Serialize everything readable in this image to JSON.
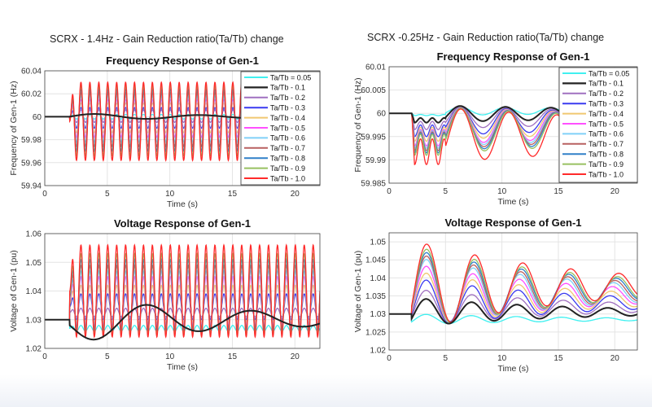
{
  "figures": [
    {
      "title": "SCRX - 1.4Hz - Gain Reduction ratio(Ta/Tb) change",
      "oscillation_hz": 1.4
    },
    {
      "title": "SCRX -0.25Hz - Gain Reduction ratio(Ta/Tb) change",
      "oscillation_hz": 0.25
    }
  ],
  "legend": [
    "Ta/Tb = 0.05",
    "Ta/Tb - 0.1",
    "Ta/Tb - 0.2",
    "Ta/Tb - 0.3",
    "Ta/Tb - 0.4",
    "Ta/Tb - 0.5",
    "Ta/Tb - 0.6",
    "Ta/Tb - 0.7",
    "Ta/Tb - 0.8",
    "Ta/Tb - 0.9",
    "Ta/Tb - 1.0"
  ],
  "colors": [
    "#40f0f0",
    "#222222",
    "#a070c0",
    "#3a3af0",
    "#f0c870",
    "#ff50ff",
    "#80d0f8",
    "#b86060",
    "#3080c8",
    "#98c060",
    "#ff2a2a"
  ],
  "chart_data": [
    {
      "type": "line",
      "title": "Frequency Response of Gen-1",
      "xlabel": "Time (s)",
      "ylabel": "Frequency of Gen-1 (Hz)",
      "xlim": [
        0,
        22
      ],
      "ylim": [
        59.94,
        60.04
      ],
      "xticks": [
        0,
        5,
        10,
        15,
        20
      ],
      "yticks": [
        "59.94",
        "59.96",
        "59.98",
        "60",
        "60.02",
        "60.04"
      ],
      "grid": true,
      "legend": "top-right",
      "baseline": 60,
      "disturbance_time": 2,
      "series_peak": [
        60.002,
        60.004,
        60.006,
        60.008,
        60.012,
        60.015,
        60.018,
        60.021,
        60.024,
        60.027,
        60.03
      ],
      "series_trough": [
        59.998,
        59.998,
        59.995,
        59.99,
        59.986,
        59.982,
        59.978,
        59.974,
        59.97,
        59.966,
        59.962
      ]
    },
    {
      "type": "line",
      "title": "Voltage Response of Gen-1",
      "xlabel": "Time (s)",
      "ylabel": "Voltage of Gen-1 (pu)",
      "xlim": [
        0,
        22
      ],
      "ylim": [
        1.02,
        1.06
      ],
      "xticks": [
        0,
        5,
        10,
        15,
        20
      ],
      "yticks": [
        "1.02",
        "1.03",
        "1.04",
        "1.05",
        "1.06"
      ],
      "grid": true,
      "baseline": 1.03,
      "disturbance_time": 2,
      "series_peak": [
        1.028,
        1.036,
        1.034,
        1.039,
        1.042,
        1.045,
        1.047,
        1.049,
        1.051,
        1.053,
        1.056
      ],
      "series_trough": [
        1.026,
        1.021,
        1.031,
        1.03,
        1.029,
        1.028,
        1.027,
        1.027,
        1.026,
        1.025,
        1.024
      ]
    },
    {
      "type": "line",
      "title": "Frequency Response of Gen-1",
      "xlabel": "Time (s)",
      "ylabel": "Frequency of Gen-1 (Hz)",
      "xlim": [
        0,
        22
      ],
      "ylim": [
        59.985,
        60.01
      ],
      "xticks": [
        0,
        5,
        10,
        15,
        20
      ],
      "yticks": [
        "59.985",
        "59.99",
        "59.995",
        "60",
        "60.005",
        "60.01"
      ],
      "grid": true,
      "legend": "top-right",
      "baseline": 60,
      "disturbance_time": 2,
      "series_peak": [
        60.0015,
        60.0018,
        60.0017,
        60.0017,
        60.0017,
        60.0017,
        60.0017,
        60.0017,
        60.0017,
        60.0017,
        60.0017
      ],
      "series_trough": [
        59.9995,
        59.998,
        59.9965,
        59.995,
        59.994,
        59.993,
        59.9925,
        59.992,
        59.9915,
        59.991,
        59.989
      ]
    },
    {
      "type": "line",
      "title": "Voltage Response of Gen-1",
      "xlabel": "Time (s)",
      "ylabel": "Voltage of Gen-1 (pu)",
      "xlim": [
        0,
        22
      ],
      "ylim": [
        1.02,
        1.0525
      ],
      "xticks": [
        0,
        5,
        10,
        15,
        20
      ],
      "yticks": [
        "1.02",
        "1.025",
        "1.03",
        "1.035",
        "1.04",
        "1.045",
        "1.05"
      ],
      "grid": true,
      "baseline": 1.03,
      "disturbance_time": 2,
      "series_peak": [
        1.03,
        1.0345,
        1.037,
        1.04,
        1.042,
        1.044,
        1.046,
        1.047,
        1.048,
        1.049,
        1.0505
      ],
      "series_trough": [
        1.027,
        1.0265,
        1.0265,
        1.026,
        1.026,
        1.026,
        1.0255,
        1.0255,
        1.0255,
        1.025,
        1.025
      ]
    }
  ]
}
